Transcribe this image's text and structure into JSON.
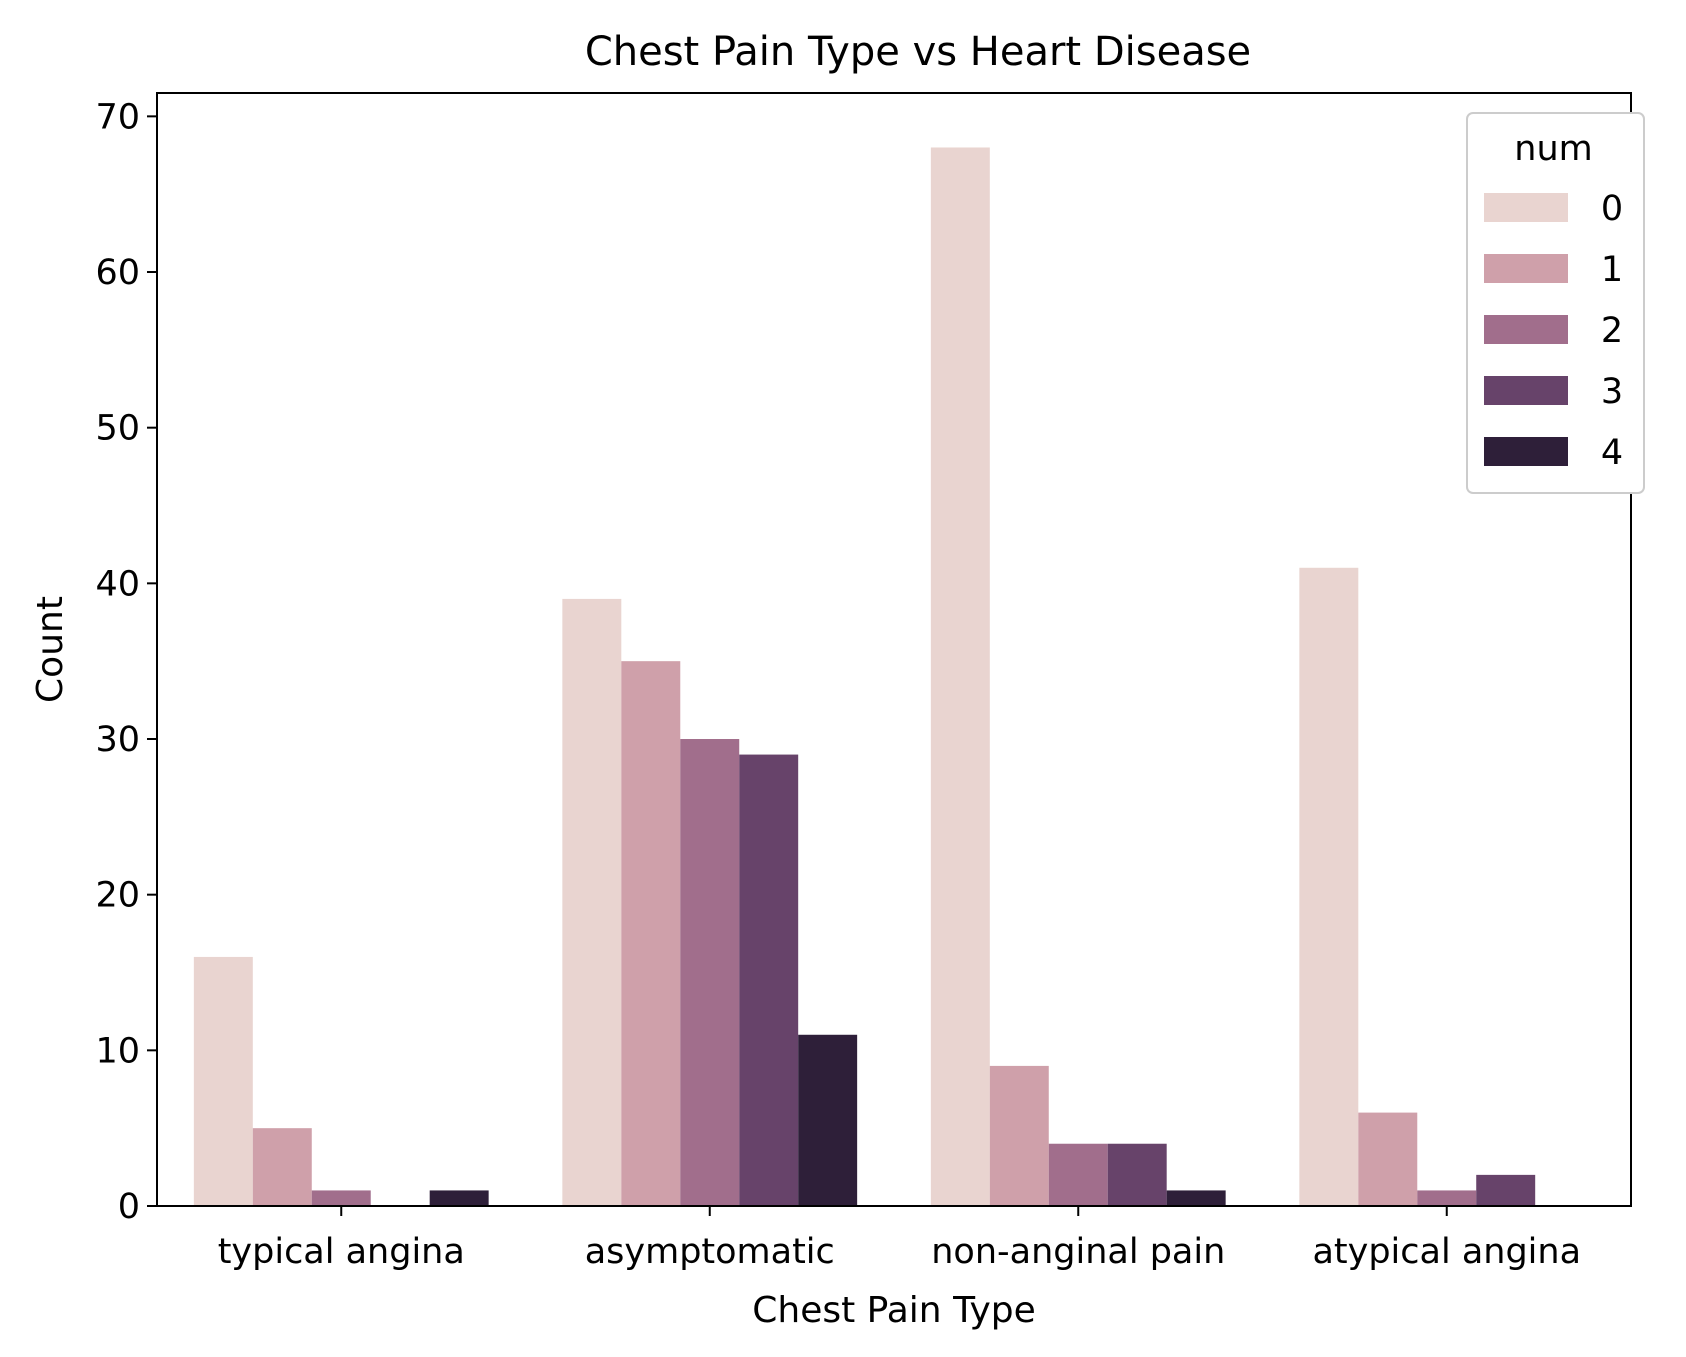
{
  "chart_data": {
    "type": "bar",
    "title": "Chest Pain Type vs Heart Disease",
    "xlabel": "Chest Pain Type",
    "ylabel": "Count",
    "categories": [
      "typical angina",
      "asymptomatic",
      "non-anginal pain",
      "atypical angina"
    ],
    "ylim": [
      0,
      71.5
    ],
    "yticks": [
      0,
      10,
      20,
      30,
      40,
      50,
      60,
      70
    ],
    "grid": false,
    "legend": {
      "title": "num",
      "placement": "top-right"
    },
    "series": [
      {
        "name": "0",
        "color": "#e9d4d0",
        "values": [
          16,
          39,
          68,
          41
        ]
      },
      {
        "name": "1",
        "color": "#cfa0aa",
        "values": [
          5,
          35,
          9,
          6
        ]
      },
      {
        "name": "2",
        "color": "#a16e8c",
        "values": [
          1,
          30,
          4,
          1
        ]
      },
      {
        "name": "3",
        "color": "#67436a",
        "values": [
          0,
          29,
          4,
          2
        ]
      },
      {
        "name": "4",
        "color": "#2e1f39",
        "values": [
          1,
          11,
          1,
          0
        ]
      }
    ]
  }
}
